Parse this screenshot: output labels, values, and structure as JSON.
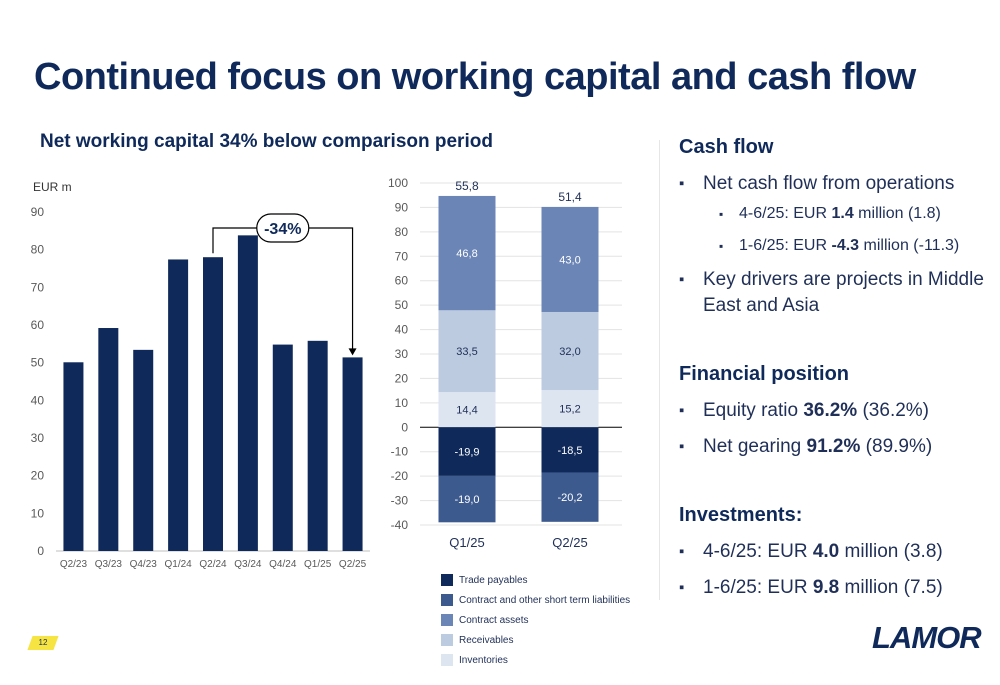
{
  "title": "Continued focus on working capital and cash flow",
  "subtitle": "Net working capital 34% below comparison period",
  "page_number": "12",
  "logo_text": "LAMOR",
  "colors": {
    "navy": "#0f2a5a",
    "trade_payables": "#0f2a5a",
    "contract_liabilities": "#3d5a8f",
    "contract_assets": "#6b86b6",
    "receivables": "#bccbe0",
    "inventories": "#dde5f1"
  },
  "chart_data": [
    {
      "type": "bar",
      "ylabel": "EUR m",
      "categories": [
        "Q2/23",
        "Q3/23",
        "Q4/23",
        "Q1/24",
        "Q2/24",
        "Q3/24",
        "Q4/24",
        "Q1/25",
        "Q2/25"
      ],
      "values": [
        50.1,
        59.2,
        53.4,
        77.4,
        78.0,
        83.8,
        54.8,
        55.8,
        51.4
      ],
      "ylim": [
        0,
        90
      ],
      "yticks": [
        "0",
        "10",
        "20",
        "30",
        "40",
        "50",
        "60",
        "70",
        "80",
        "90"
      ],
      "annotation": "-34%",
      "grid": false
    },
    {
      "type": "bar",
      "stacked": true,
      "categories": [
        "Q1/25",
        "Q2/25"
      ],
      "ylim": [
        -40,
        100
      ],
      "yticks": [
        "-40",
        "-30",
        "-20",
        "-10",
        "0",
        "10",
        "20",
        "30",
        "40",
        "50",
        "60",
        "70",
        "80",
        "90",
        "100"
      ],
      "totals": [
        "55,8",
        "51,4"
      ],
      "series": [
        {
          "name": "Trade payables",
          "values": [
            -19.9,
            -18.5
          ],
          "labels": [
            "-19,9",
            "-18,5"
          ],
          "color": "#0f2a5a"
        },
        {
          "name": "Contract and other short term liabilities",
          "values": [
            -19.0,
            -20.2
          ],
          "labels": [
            "-19,0",
            "-20,2"
          ],
          "color": "#3d5a8f"
        },
        {
          "name": "Contract assets",
          "values": [
            46.8,
            43.0
          ],
          "labels": [
            "46,8",
            "43,0"
          ],
          "color": "#6b86b6"
        },
        {
          "name": "Receivables",
          "values": [
            33.5,
            32.0
          ],
          "labels": [
            "33,5",
            "32,0"
          ],
          "color": "#bccbe0"
        },
        {
          "name": "Inventories",
          "values": [
            14.4,
            15.2
          ],
          "labels": [
            "14,4",
            "15,2"
          ],
          "color": "#dde5f1"
        }
      ],
      "grid": true,
      "legend": "bottom"
    }
  ],
  "right_panel": {
    "cash_flow": {
      "title": "Cash flow",
      "item1": "Net cash flow from operations",
      "sub1": {
        "pre": "4-6/25: EUR ",
        "bold": "1.4",
        "post": " million (1.8)"
      },
      "sub2": {
        "pre": "1-6/25: EUR ",
        "bold": "-4.3",
        "post": " million (-11.3)"
      },
      "item2": "Key drivers are projects in Middle East and Asia"
    },
    "financial_position": {
      "title": "Financial position",
      "equity": {
        "pre": "Equity ratio ",
        "bold": "36.2%",
        "post": " (36.2%)"
      },
      "gearing": {
        "pre": "Net gearing ",
        "bold": "91.2%",
        "post": " (89.9%)"
      }
    },
    "investments": {
      "title": "Investments:",
      "item1": {
        "pre": "4-6/25: EUR ",
        "bold": "4.0",
        "post": " million (3.8)"
      },
      "item2": {
        "pre": "1-6/25: EUR ",
        "bold": "9.8",
        "post": " million (7.5)"
      }
    }
  }
}
